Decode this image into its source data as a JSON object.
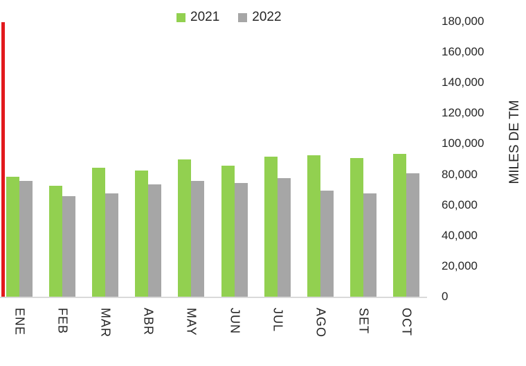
{
  "colors": {
    "series_2021": "#92D050",
    "series_2022": "#A6A6A6",
    "red_line": "#E2191C",
    "axis_line": "#D9D9D9",
    "text": "#262626",
    "background": "#FFFFFF"
  },
  "chart_data": {
    "type": "bar",
    "title": "",
    "categories": [
      "ENE",
      "FEB",
      "MAR",
      "ABR",
      "MAY",
      "JUN",
      "JUL",
      "AGO",
      "SET",
      "OCT"
    ],
    "series": [
      {
        "name": "2021",
        "color": "#92D050",
        "values": [
          79000,
          73000,
          85000,
          83000,
          90000,
          86000,
          92000,
          93000,
          91000,
          94000
        ]
      },
      {
        "name": "2022",
        "color": "#A6A6A6",
        "values": [
          76000,
          66000,
          68000,
          74000,
          76000,
          75000,
          78000,
          70000,
          68000,
          81000
        ]
      }
    ],
    "xlabel": "",
    "ylabel": "MILES DE TM",
    "ylim": [
      0,
      180000
    ],
    "ytick_step": 20000,
    "ytick_labels": [
      "0",
      "20,000",
      "40,000",
      "60,000",
      "80,000",
      "100,000",
      "120,000",
      "140,000",
      "160,000",
      "180,000"
    ],
    "grid": false,
    "legend_position": "top",
    "annotations": [
      {
        "type": "vline",
        "description": "red vertical line at left edge of plot area",
        "color": "#E2191C"
      }
    ]
  }
}
